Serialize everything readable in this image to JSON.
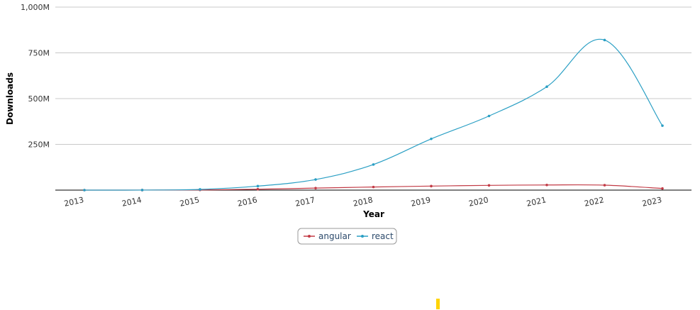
{
  "chart_data": {
    "type": "line",
    "title": "",
    "xlabel": "Year",
    "ylabel": "Downloads",
    "x": [
      "2013",
      "2014",
      "2015",
      "2016",
      "2017",
      "2018",
      "2019",
      "2020",
      "2021",
      "2022",
      "2023"
    ],
    "ylim": [
      0,
      1000000000
    ],
    "yticks": [
      250000000,
      500000000,
      750000000,
      1000000000
    ],
    "ytick_labels": [
      "250M",
      "500M",
      "750M",
      "1,000M"
    ],
    "grid": true,
    "legend_position": "bottom-center",
    "series": [
      {
        "name": "angular",
        "color": "#c23a45",
        "values": [
          0,
          200000,
          1000000,
          5000000,
          11000000,
          17000000,
          22000000,
          26000000,
          28000000,
          27000000,
          9000000
        ]
      },
      {
        "name": "react",
        "color": "#2a9fc4",
        "values": [
          0,
          300000,
          4000000,
          22000000,
          58000000,
          140000000,
          280000000,
          405000000,
          565000000,
          820000000,
          352000000
        ]
      }
    ]
  },
  "decor": {
    "marker_color": "#ffd400"
  }
}
